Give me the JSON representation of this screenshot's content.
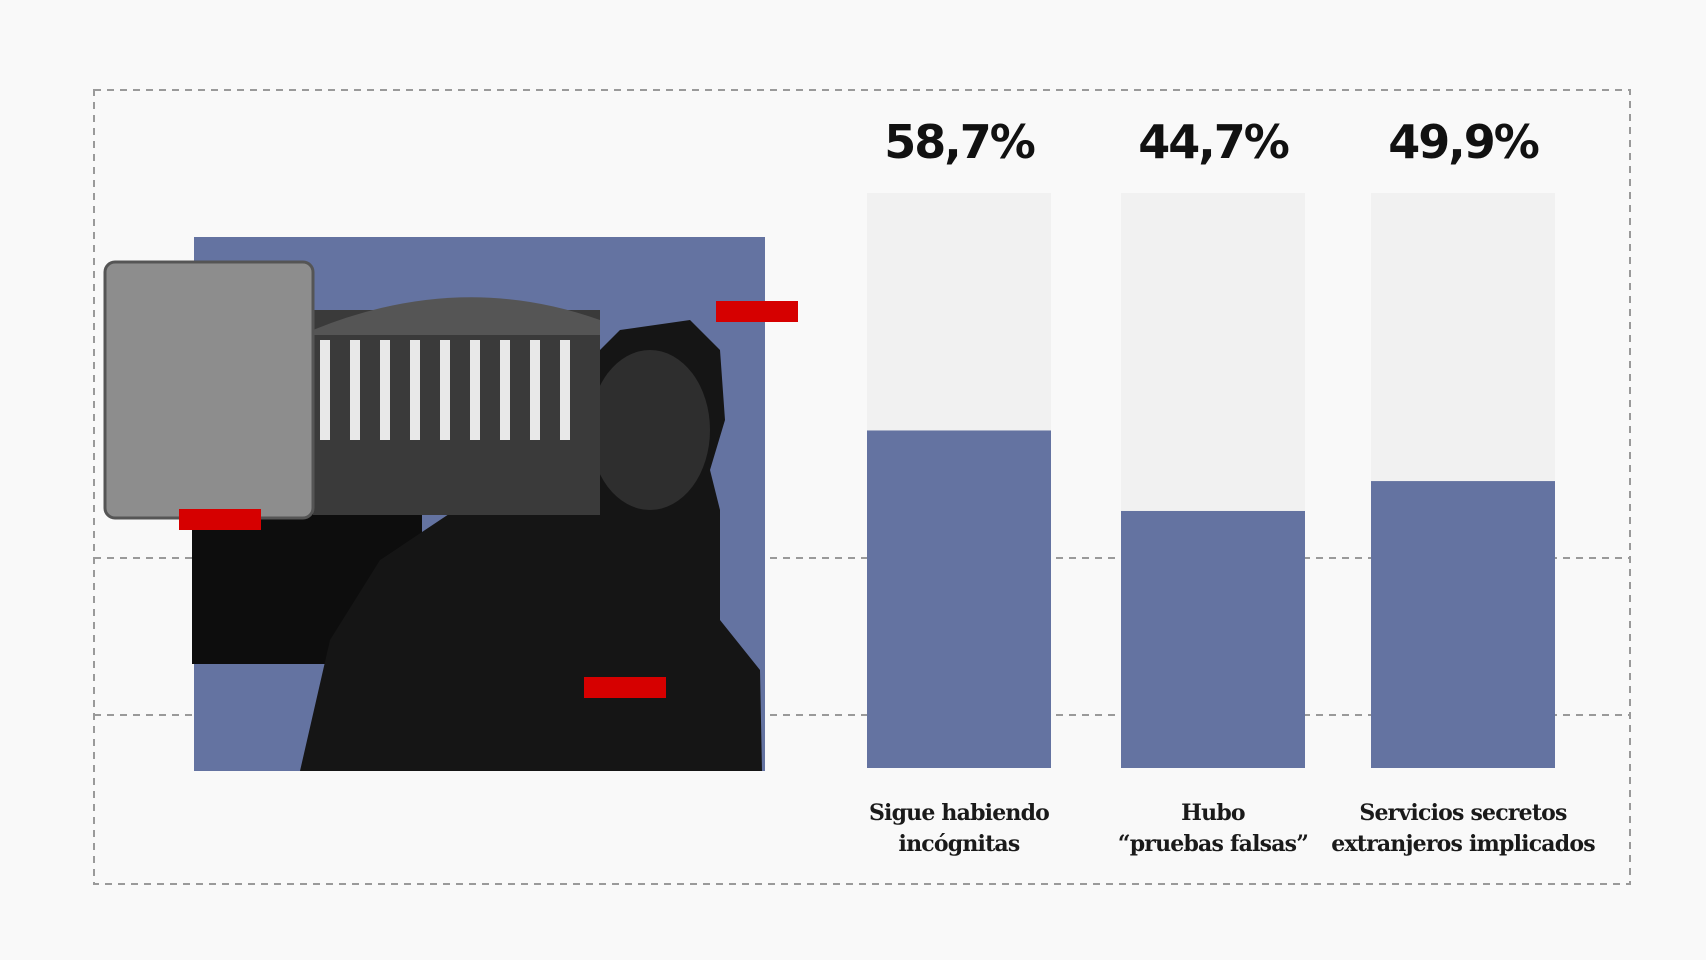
{
  "chart_data": {
    "type": "bar",
    "categories": [
      "Sigue habiendo\nincógnitas",
      "Hubo\n“pruebas falsas”",
      "Servicios secretos\nextranjeros implicados"
    ],
    "values": [
      58.7,
      44.7,
      49.9
    ],
    "value_labels": [
      "58,7%",
      "44,7%",
      "49,9%"
    ],
    "color": "#6473a1",
    "ylim": [
      0,
      100
    ]
  }
}
